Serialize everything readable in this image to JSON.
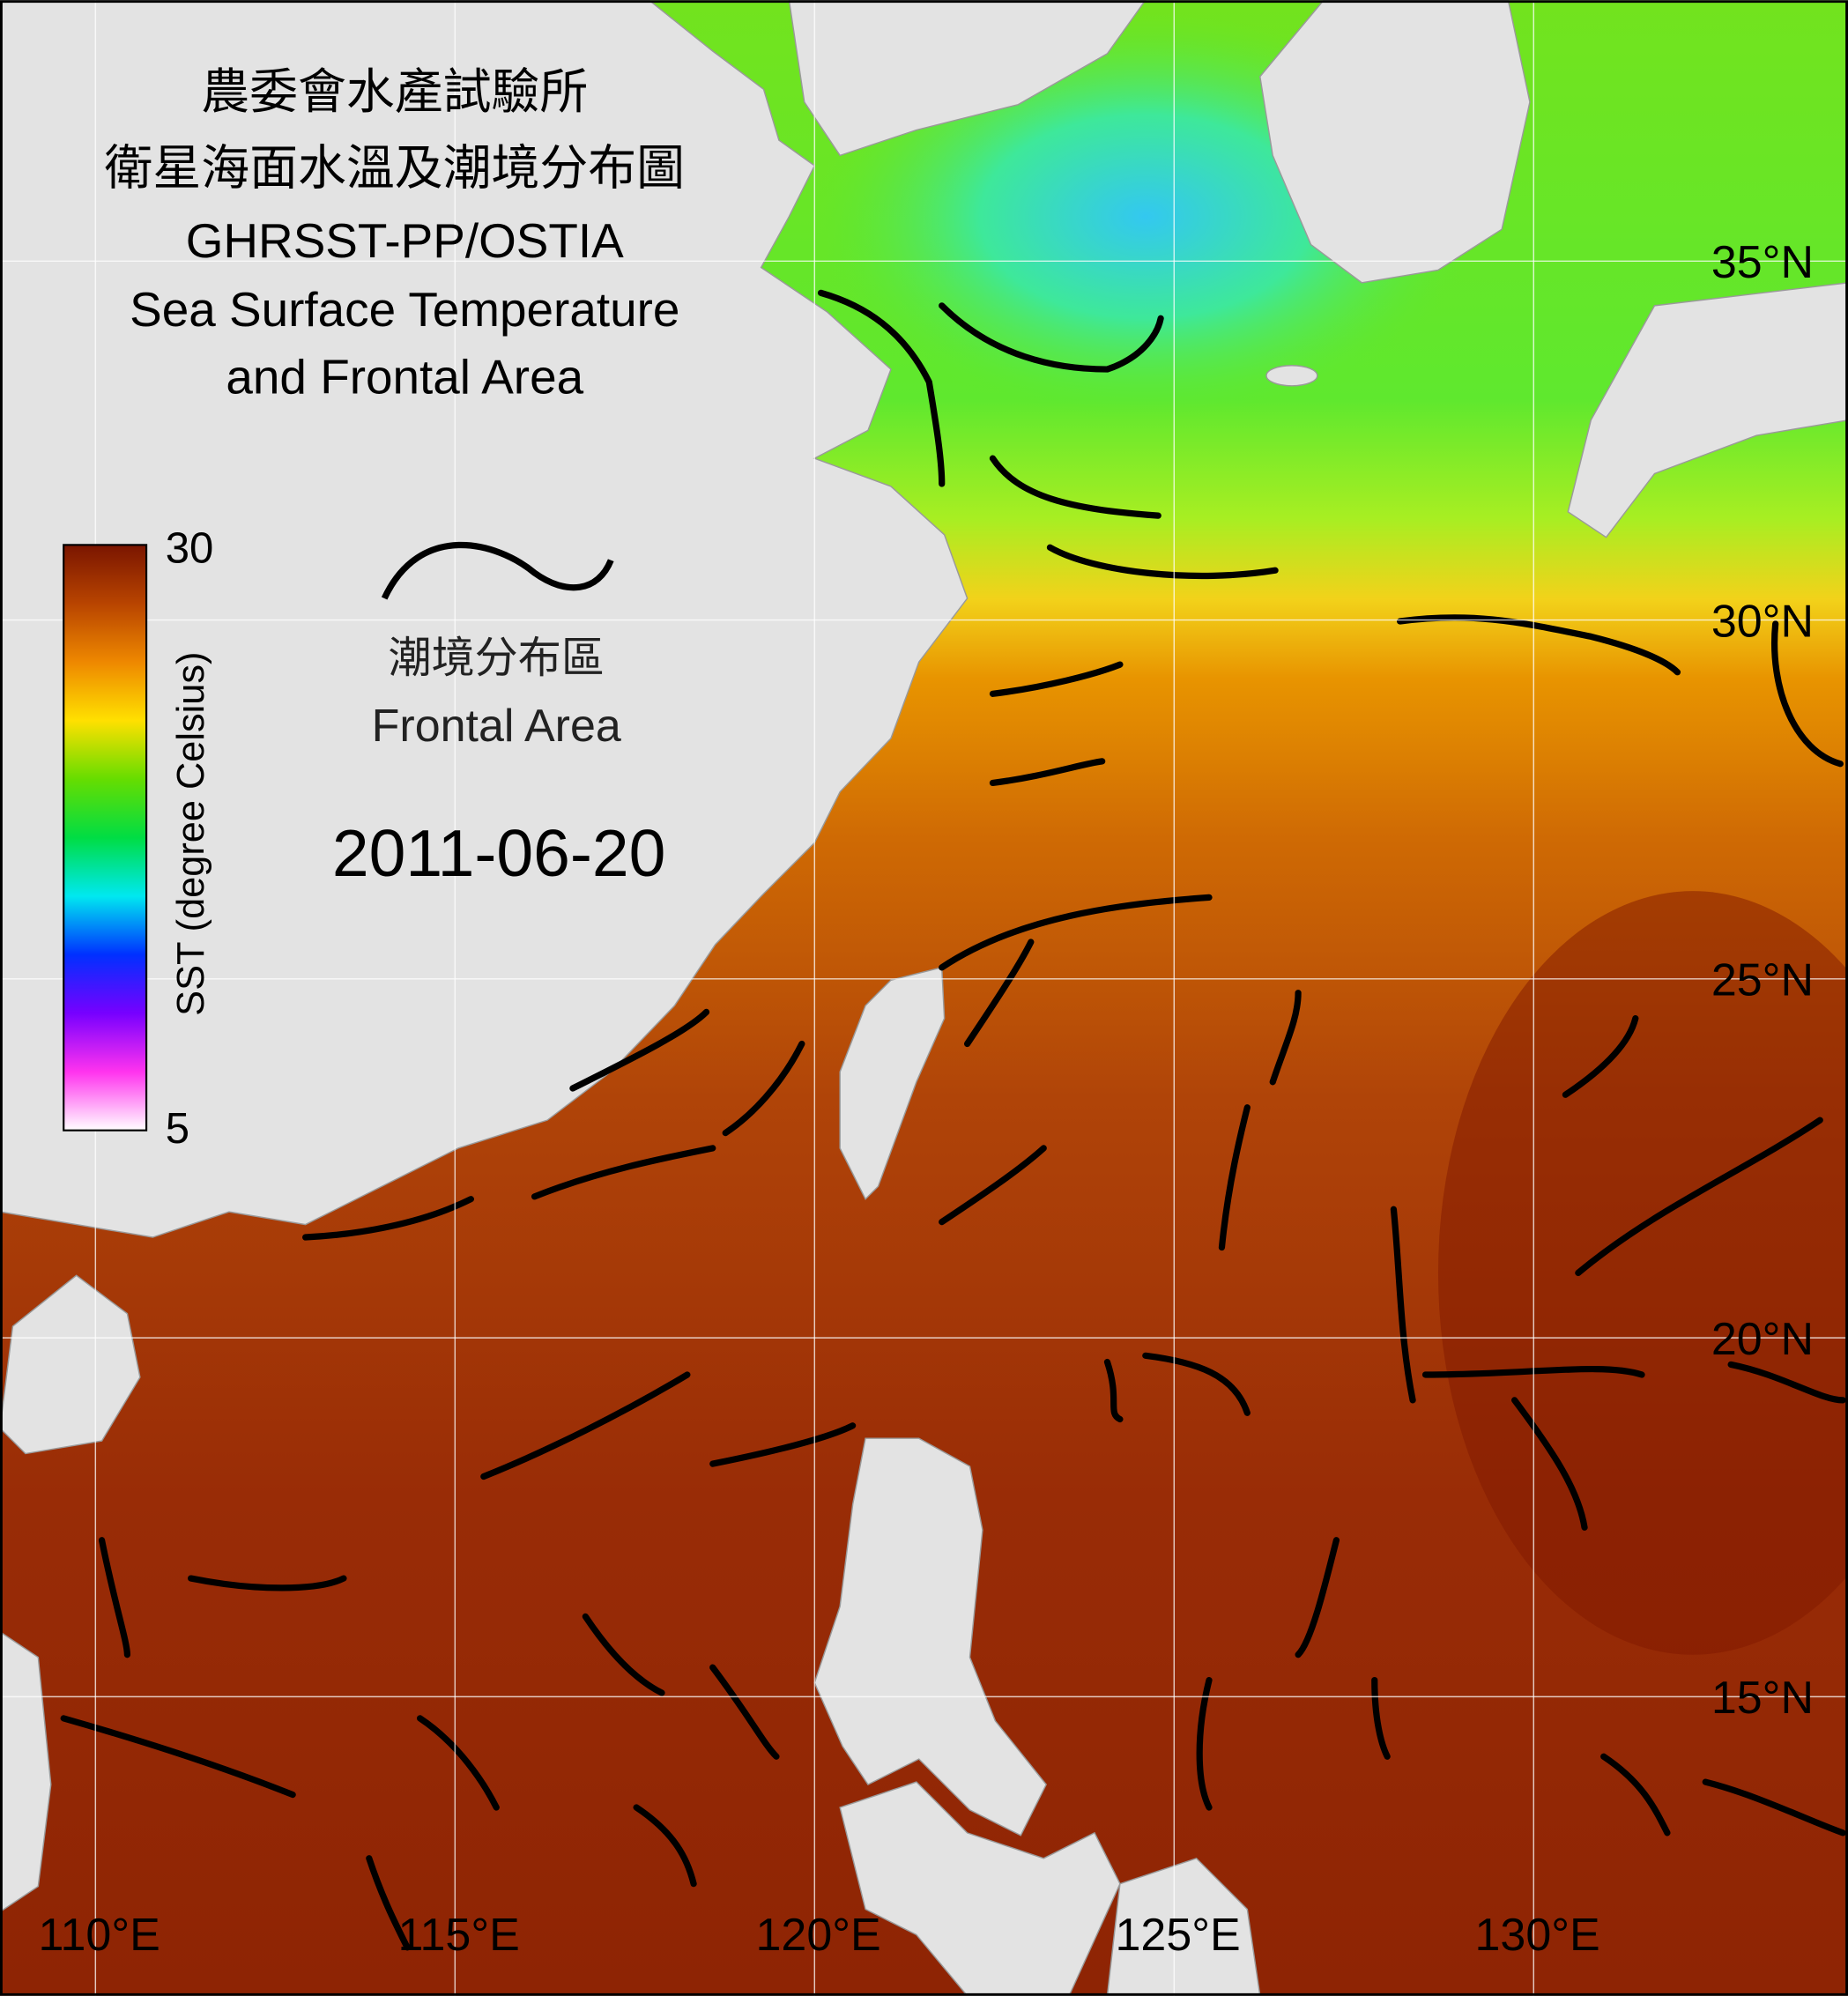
{
  "title_lines": [
    "農委會水產試驗所",
    "衛星海面水溫及潮境分布圖",
    "GHRSST-PP/OSTIA",
    "Sea Surface Temperature",
    "and Frontal Area"
  ],
  "colorbar": {
    "label": "SST (degree Celsius)",
    "max_label": 30,
    "min_label": 5
  },
  "legend": {
    "label_zh": "潮境分布區",
    "label_en": "Frontal Area"
  },
  "date": "2011-06-20",
  "latitude_labels": [
    "35°N",
    "30°N",
    "25°N",
    "20°N",
    "15°N"
  ],
  "longitude_labels": [
    "110°E",
    "115°E",
    "120°E",
    "125°E",
    "130°E"
  ]
}
